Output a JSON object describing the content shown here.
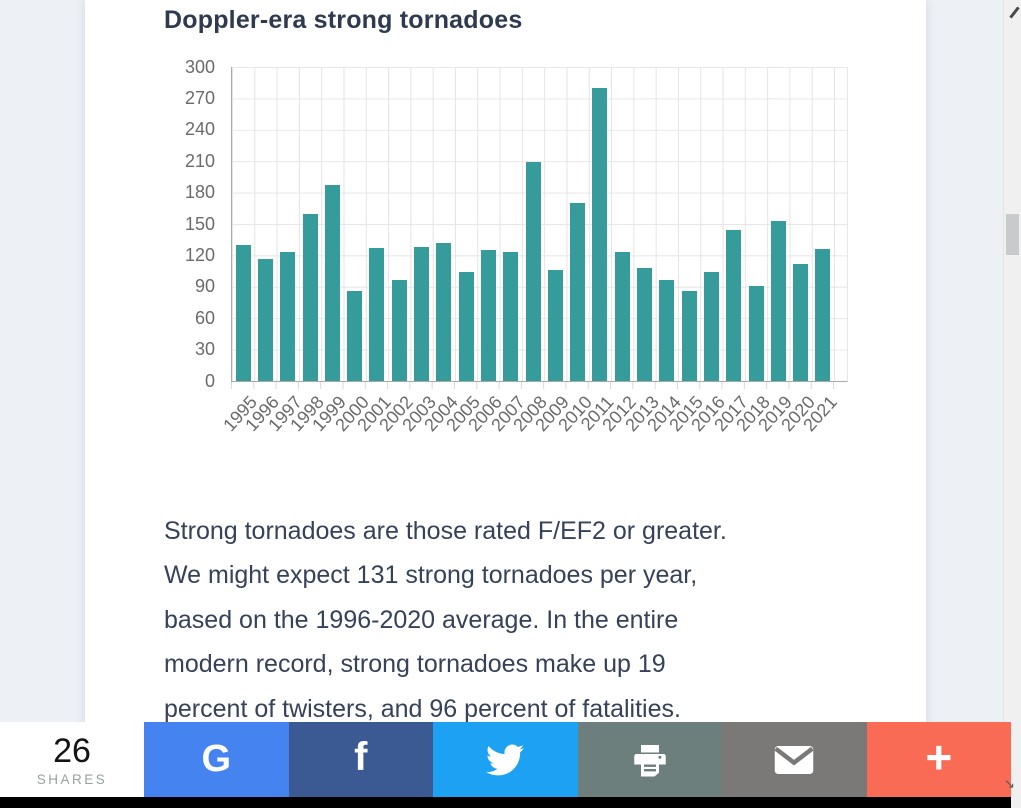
{
  "article": {
    "title": "Doppler-era strong tornadoes",
    "body_lines": [
      "Strong tornadoes are those rated F/EF2 or greater.",
      "We might expect 131 strong tornadoes per year,",
      "based on the 1996-2020 average. In the entire",
      "modern record, strong tornadoes make up 19",
      "percent of twisters, and 96 percent of fatalities."
    ]
  },
  "chart_data": {
    "type": "bar",
    "title": "Doppler-era strong tornadoes",
    "categories": [
      "1995",
      "1996",
      "1997",
      "1998",
      "1999",
      "2000",
      "2001",
      "2002",
      "2003",
      "2004",
      "2005",
      "2006",
      "2007",
      "2008",
      "2009",
      "2010",
      "2011",
      "2012",
      "2013",
      "2014",
      "2015",
      "2016",
      "2017",
      "2018",
      "2019",
      "2020",
      "2021"
    ],
    "values": [
      130,
      117,
      123,
      160,
      187,
      86,
      127,
      97,
      128,
      132,
      104,
      125,
      123,
      209,
      106,
      170,
      280,
      123,
      108,
      97,
      86,
      104,
      144,
      91,
      153,
      112,
      126
    ],
    "xlabel": "",
    "ylabel": "",
    "ylim": [
      0,
      300
    ],
    "ytick_step": 30,
    "ytick_labels": [
      "300",
      "270",
      "240",
      "210",
      "180",
      "150",
      "120",
      "90",
      "60",
      "30",
      "0"
    ],
    "grid": true,
    "legend": "none",
    "bar_color": "#359b9b"
  },
  "share_bar": {
    "count": "26",
    "count_label": "SHARES",
    "buttons": [
      {
        "name": "google",
        "icon": "google-g-icon",
        "glyph": "G",
        "color": "#4583f1"
      },
      {
        "name": "facebook",
        "icon": "facebook-f-icon",
        "glyph": "f",
        "color": "#3b5a94"
      },
      {
        "name": "twitter",
        "icon": "twitter-bird-icon",
        "glyph": "",
        "color": "#1da1f2"
      },
      {
        "name": "print",
        "icon": "printer-icon",
        "glyph": "",
        "color": "#6c7f7c"
      },
      {
        "name": "email",
        "icon": "envelope-icon",
        "glyph": "",
        "color": "#7b7977"
      },
      {
        "name": "more",
        "icon": "plus-icon",
        "glyph": "+",
        "color": "#f96b55"
      }
    ]
  }
}
